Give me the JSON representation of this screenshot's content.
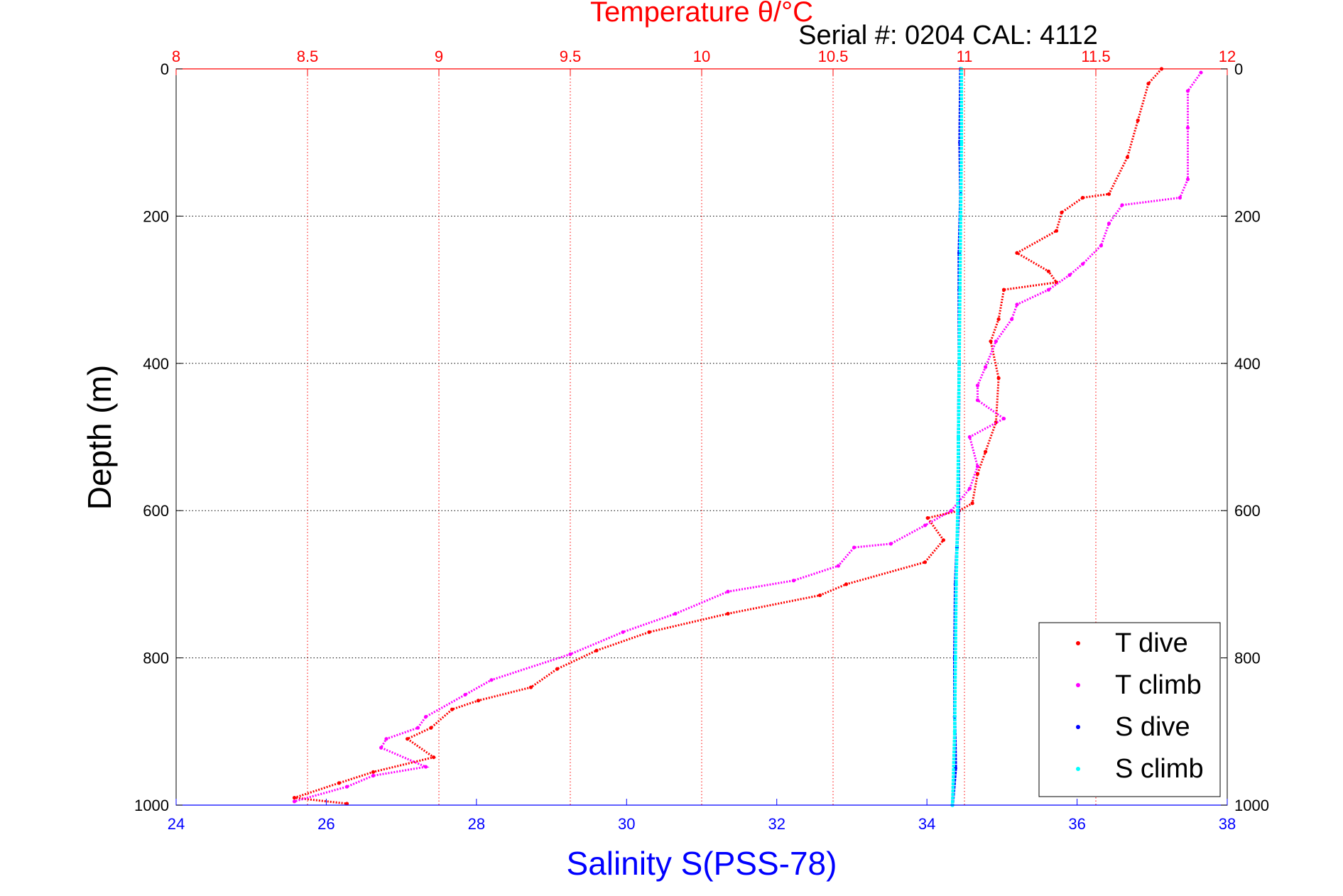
{
  "chart_data": {
    "type": "scatter",
    "title": "Temperature θ/°C",
    "subtitle": "Serial #: 0204  CAL: 4112",
    "ylabel": "Depth (m)",
    "xlabel": "Salinity S(PSS-78)",
    "ylim": [
      0,
      1000
    ],
    "y_reversed": true,
    "xlim_top": [
      8,
      12
    ],
    "xlim_bottom": [
      24,
      38
    ],
    "grid": true,
    "legend_position": "bottom-right",
    "top_ticks": [
      "8",
      "8.5",
      "9",
      "9.5",
      "10",
      "10.5",
      "11",
      "11.5",
      "12"
    ],
    "top_tick_values": [
      8,
      8.5,
      9,
      9.5,
      10,
      10.5,
      11,
      11.5,
      12
    ],
    "bottom_ticks": [
      "24",
      "26",
      "28",
      "30",
      "32",
      "34",
      "36",
      "38"
    ],
    "bottom_tick_values": [
      24,
      26,
      28,
      30,
      32,
      34,
      36,
      38
    ],
    "y_ticks": [
      "0",
      "200",
      "400",
      "600",
      "800",
      "1000"
    ],
    "y_tick_values": [
      0,
      200,
      400,
      600,
      800,
      1000
    ],
    "colors": {
      "temperature_axis": "#ff0000",
      "salinity_axis": "#0000ff",
      "t_dive": "#ff0000",
      "t_climb": "#ff00ff",
      "s_dive": "#0000ff",
      "s_climb": "#00ffff"
    },
    "series": [
      {
        "name": "T dive",
        "axis": "temperature",
        "color": "#ff0000",
        "points": [
          [
            11.75,
            0
          ],
          [
            11.7,
            20
          ],
          [
            11.66,
            70
          ],
          [
            11.62,
            120
          ],
          [
            11.55,
            170
          ],
          [
            11.45,
            175
          ],
          [
            11.37,
            195
          ],
          [
            11.35,
            220
          ],
          [
            11.2,
            250
          ],
          [
            11.32,
            275
          ],
          [
            11.35,
            290
          ],
          [
            11.15,
            300
          ],
          [
            11.13,
            340
          ],
          [
            11.1,
            370
          ],
          [
            11.13,
            420
          ],
          [
            11.12,
            480
          ],
          [
            11.08,
            520
          ],
          [
            11.05,
            550
          ],
          [
            11.03,
            590
          ],
          [
            10.98,
            600
          ],
          [
            10.86,
            610
          ],
          [
            10.92,
            640
          ],
          [
            10.85,
            670
          ],
          [
            10.55,
            700
          ],
          [
            10.45,
            715
          ],
          [
            10.1,
            740
          ],
          [
            9.8,
            765
          ],
          [
            9.6,
            790
          ],
          [
            9.45,
            815
          ],
          [
            9.35,
            840
          ],
          [
            9.15,
            858
          ],
          [
            9.05,
            870
          ],
          [
            8.97,
            895
          ],
          [
            8.88,
            910
          ],
          [
            8.98,
            935
          ],
          [
            8.75,
            955
          ],
          [
            8.62,
            970
          ],
          [
            8.45,
            990
          ],
          [
            8.65,
            998
          ]
        ]
      },
      {
        "name": "T climb",
        "axis": "temperature",
        "color": "#ff00ff",
        "points": [
          [
            11.9,
            5
          ],
          [
            11.85,
            30
          ],
          [
            11.85,
            80
          ],
          [
            11.85,
            150
          ],
          [
            11.82,
            175
          ],
          [
            11.6,
            185
          ],
          [
            11.55,
            210
          ],
          [
            11.52,
            240
          ],
          [
            11.45,
            265
          ],
          [
            11.4,
            280
          ],
          [
            11.32,
            300
          ],
          [
            11.2,
            320
          ],
          [
            11.18,
            340
          ],
          [
            11.12,
            370
          ],
          [
            11.08,
            405
          ],
          [
            11.05,
            430
          ],
          [
            11.05,
            450
          ],
          [
            11.15,
            475
          ],
          [
            11.02,
            500
          ],
          [
            11.05,
            540
          ],
          [
            11.02,
            570
          ],
          [
            10.95,
            600
          ],
          [
            10.85,
            620
          ],
          [
            10.72,
            645
          ],
          [
            10.58,
            650
          ],
          [
            10.52,
            675
          ],
          [
            10.35,
            695
          ],
          [
            10.1,
            710
          ],
          [
            9.9,
            740
          ],
          [
            9.7,
            765
          ],
          [
            9.5,
            795
          ],
          [
            9.2,
            830
          ],
          [
            9.1,
            850
          ],
          [
            8.95,
            880
          ],
          [
            8.92,
            895
          ],
          [
            8.8,
            910
          ],
          [
            8.78,
            922
          ],
          [
            8.95,
            948
          ],
          [
            8.75,
            960
          ],
          [
            8.65,
            975
          ],
          [
            8.45,
            995
          ]
        ]
      },
      {
        "name": "S dive",
        "axis": "salinity",
        "color": "#0000ff",
        "points": [
          [
            34.45,
            0
          ],
          [
            34.44,
            100
          ],
          [
            34.45,
            170
          ],
          [
            34.43,
            250
          ],
          [
            34.43,
            300
          ],
          [
            34.43,
            400
          ],
          [
            34.42,
            500
          ],
          [
            34.42,
            600
          ],
          [
            34.4,
            650
          ],
          [
            34.38,
            700
          ],
          [
            34.37,
            800
          ],
          [
            34.37,
            880
          ],
          [
            34.38,
            950
          ],
          [
            34.34,
            1000
          ]
        ]
      },
      {
        "name": "S climb",
        "axis": "salinity",
        "color": "#00ffff",
        "points": [
          [
            34.46,
            0
          ],
          [
            34.46,
            100
          ],
          [
            34.45,
            200
          ],
          [
            34.44,
            300
          ],
          [
            34.43,
            400
          ],
          [
            34.42,
            500
          ],
          [
            34.41,
            600
          ],
          [
            34.39,
            700
          ],
          [
            34.38,
            800
          ],
          [
            34.37,
            900
          ],
          [
            34.34,
            1000
          ]
        ]
      }
    ],
    "legend": [
      {
        "label": "T dive",
        "color": "#ff0000"
      },
      {
        "label": "T climb",
        "color": "#ff00ff"
      },
      {
        "label": "S dive",
        "color": "#0000ff"
      },
      {
        "label": "S climb",
        "color": "#00ffff"
      }
    ]
  }
}
